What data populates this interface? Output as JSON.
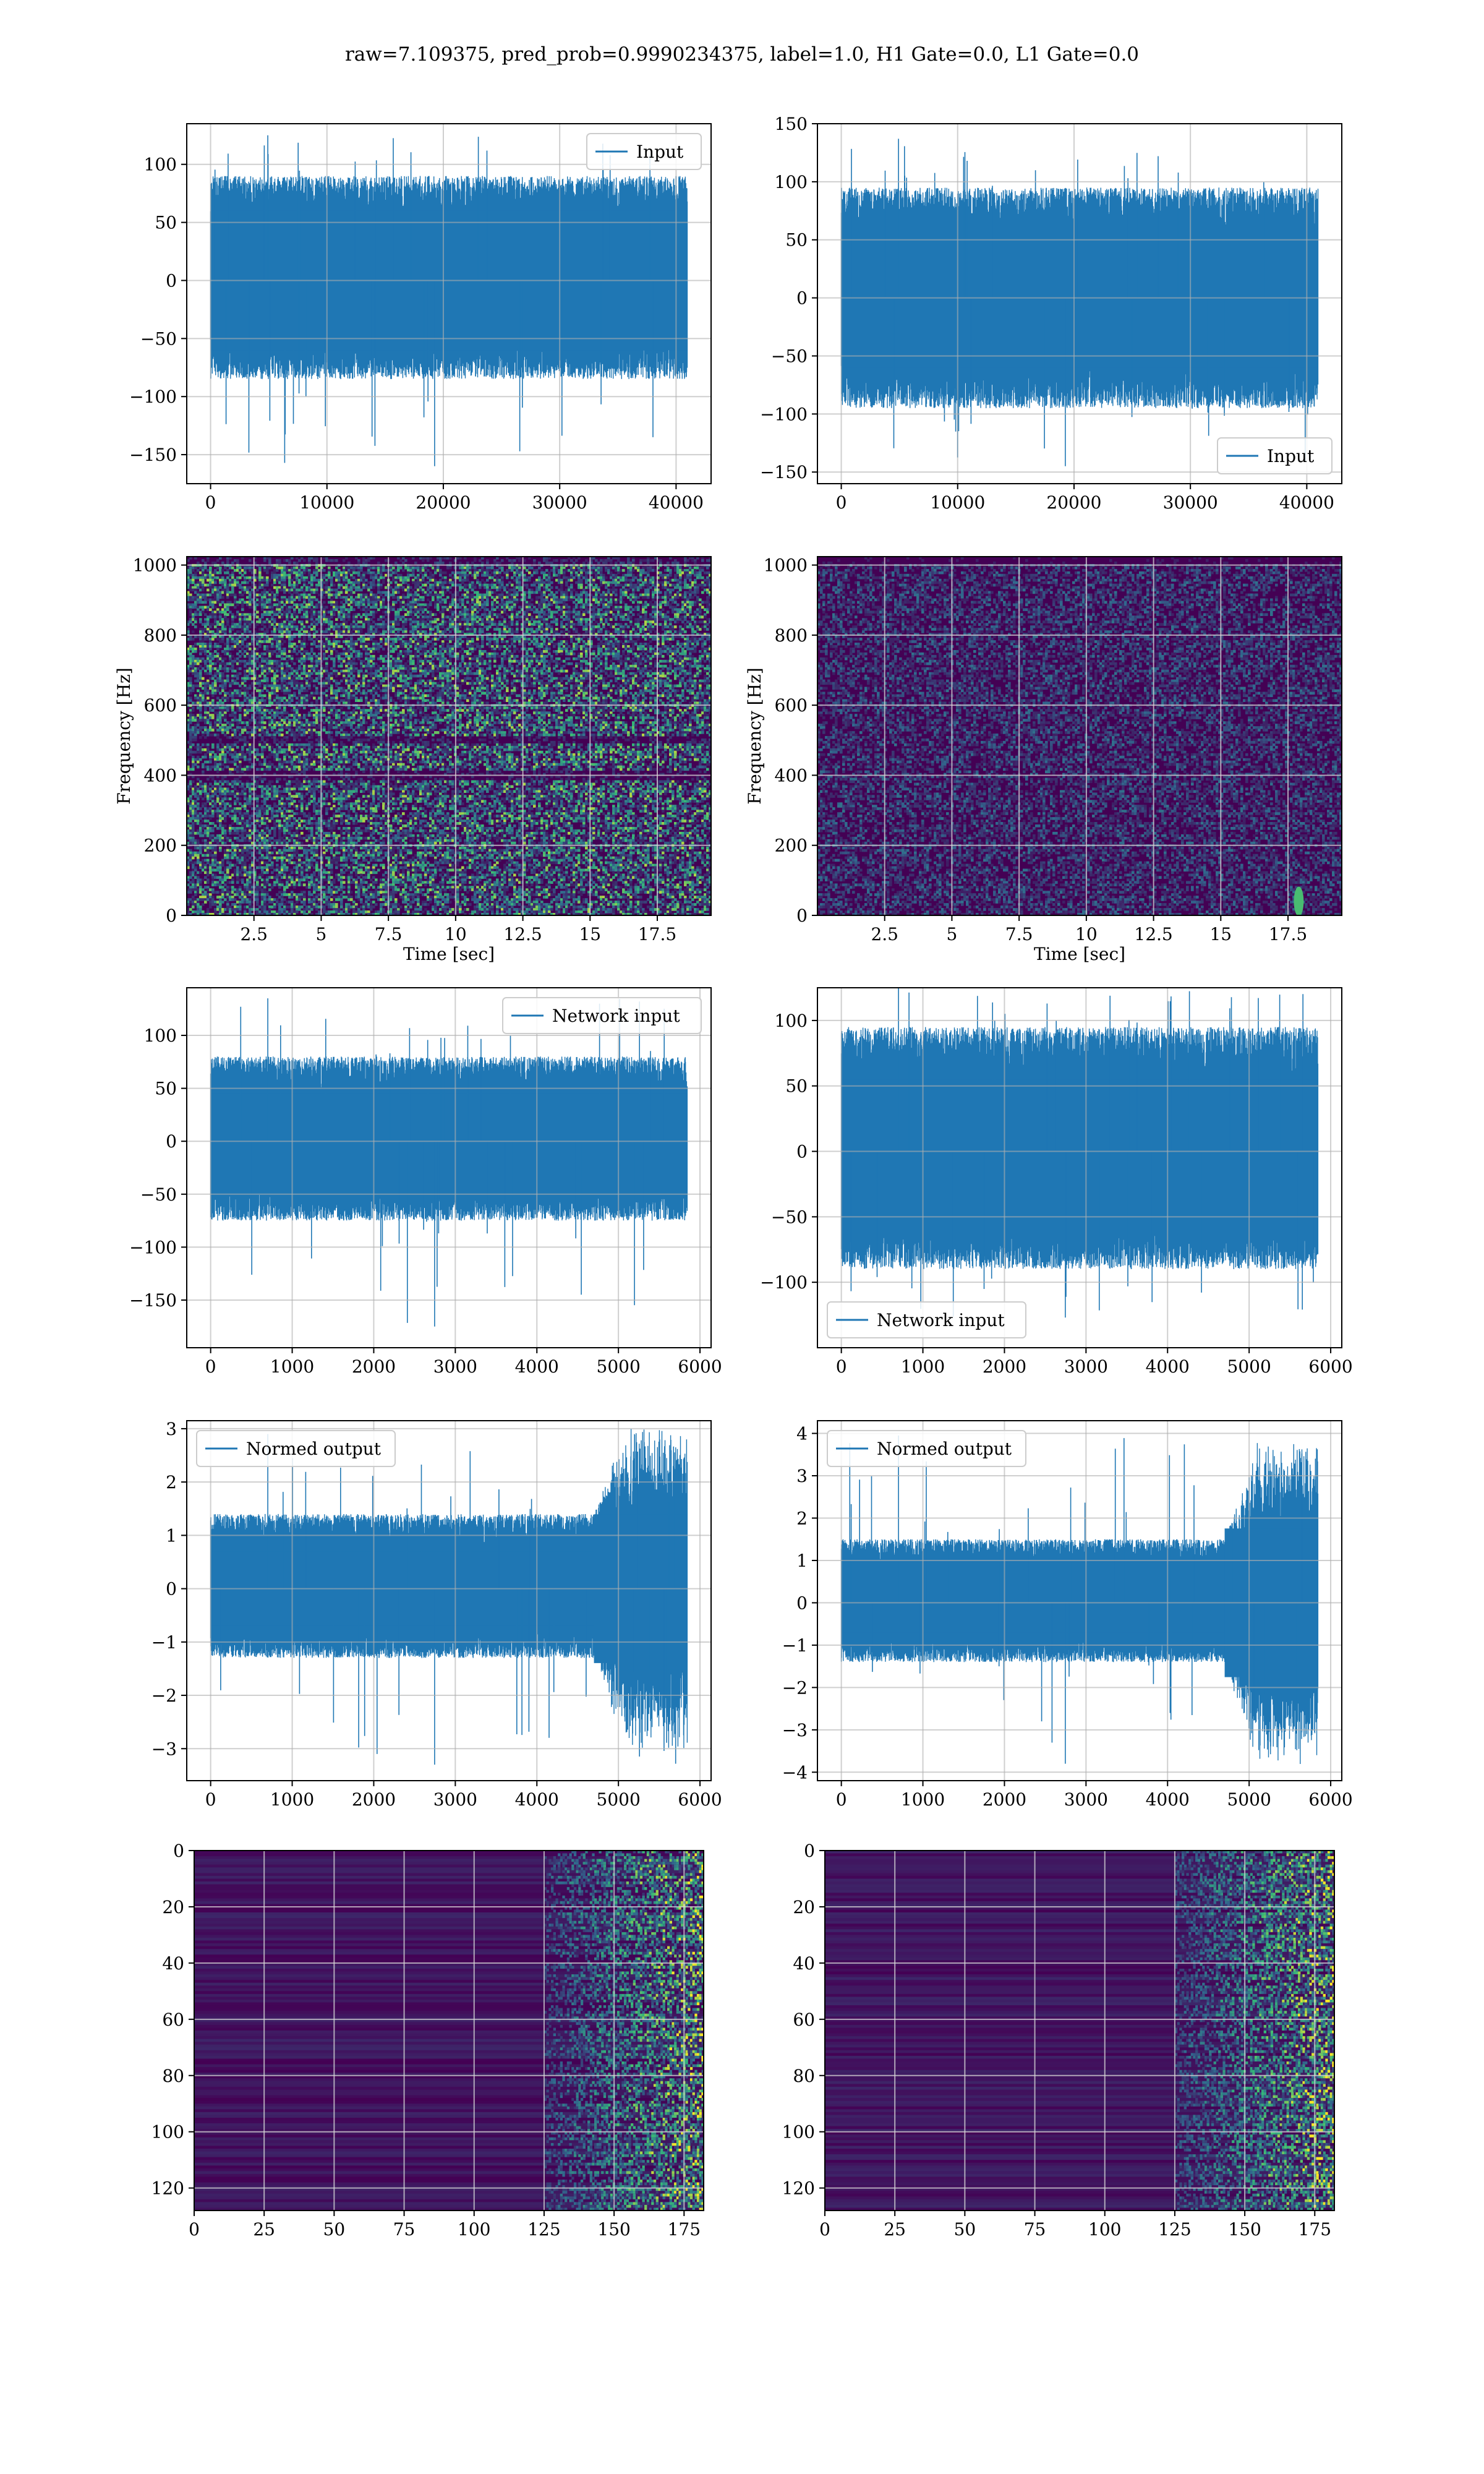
{
  "suptitle": "raw=7.109375, pred_prob=0.9990234375, label=1.0, H1 Gate=0.0, L1 Gate=0.0",
  "colors": {
    "line": "#1f77b4",
    "grid": "#b0b0b0",
    "viridis_low": "#440154",
    "viridis_mid": "#31688e",
    "viridis_high": "#35b779",
    "viridis_top": "#fde725"
  },
  "chart_data": [
    {
      "id": "h1-input",
      "type": "line",
      "title": "",
      "xlabel": "",
      "ylabel": "",
      "xlim": [
        -2048,
        43008
      ],
      "ylim": [
        -175,
        135
      ],
      "xticks": [
        0,
        10000,
        20000,
        30000,
        40000
      ],
      "yticks": [
        -150,
        -100,
        -50,
        0,
        50,
        100
      ],
      "grid": true,
      "legend": "upper right",
      "series": [
        {
          "name": "Input",
          "x_range": [
            0,
            40960
          ],
          "envelope": [
            -85,
            90
          ],
          "core": [
            -60,
            60
          ],
          "min": -160,
          "max": 125
        }
      ]
    },
    {
      "id": "l1-input",
      "type": "line",
      "title": "",
      "xlabel": "",
      "ylabel": "",
      "xlim": [
        -2048,
        43008
      ],
      "ylim": [
        -160,
        150
      ],
      "xticks": [
        0,
        10000,
        20000,
        30000,
        40000
      ],
      "yticks": [
        -150,
        -100,
        -50,
        0,
        50,
        100,
        150
      ],
      "grid": true,
      "legend": "lower right",
      "series": [
        {
          "name": "Input",
          "x_range": [
            0,
            40960
          ],
          "envelope": [
            -95,
            95
          ],
          "core": [
            -60,
            60
          ],
          "min": -145,
          "max": 137
        }
      ]
    },
    {
      "id": "h1-spectrogram",
      "type": "heatmap",
      "title": "",
      "xlabel": "Time [sec]",
      "ylabel": "Frequency [Hz]",
      "xlim": [
        0,
        19.5
      ],
      "ylim": [
        0,
        1024
      ],
      "xticks": [
        2.5,
        5.0,
        7.5,
        10.0,
        12.5,
        15.0,
        17.5
      ],
      "yticks": [
        0,
        200,
        400,
        600,
        800,
        1000
      ],
      "grid": true,
      "intensity": 0.55,
      "features": [
        {
          "kind": "dark-band",
          "freq": 500
        },
        {
          "kind": "dark-band",
          "freq": 400
        }
      ]
    },
    {
      "id": "l1-spectrogram",
      "type": "heatmap",
      "title": "",
      "xlabel": "Time [sec]",
      "ylabel": "Frequency [Hz]",
      "xlim": [
        0,
        19.5
      ],
      "ylim": [
        0,
        1024
      ],
      "xticks": [
        2.5,
        5.0,
        7.5,
        10.0,
        12.5,
        15.0,
        17.5
      ],
      "yticks": [
        0,
        200,
        400,
        600,
        800,
        1000
      ],
      "grid": true,
      "intensity": 0.22,
      "features": [
        {
          "kind": "bright-spot",
          "time": 17.9,
          "freq": 40
        }
      ]
    },
    {
      "id": "h1-network-input",
      "type": "line",
      "title": "",
      "xlabel": "",
      "ylabel": "",
      "xlim": [
        -293,
        6136
      ],
      "ylim": [
        -195,
        145
      ],
      "xticks": [
        0,
        1000,
        2000,
        3000,
        4000,
        5000,
        6000
      ],
      "yticks": [
        -150,
        -100,
        -50,
        0,
        50,
        100
      ],
      "grid": true,
      "legend": "upper right",
      "series": [
        {
          "name": "Network input",
          "x_range": [
            0,
            5843
          ],
          "envelope": [
            -75,
            80
          ],
          "core": [
            -45,
            45
          ],
          "min": -175,
          "max": 135
        }
      ]
    },
    {
      "id": "l1-network-input",
      "type": "line",
      "title": "",
      "xlabel": "",
      "ylabel": "",
      "xlim": [
        -293,
        6136
      ],
      "ylim": [
        -150,
        125
      ],
      "xticks": [
        0,
        1000,
        2000,
        3000,
        4000,
        5000,
        6000
      ],
      "yticks": [
        -100,
        -50,
        0,
        50,
        100
      ],
      "grid": true,
      "legend": "lower left",
      "series": [
        {
          "name": "Network input",
          "x_range": [
            0,
            5843
          ],
          "envelope": [
            -90,
            95
          ],
          "core": [
            -55,
            55
          ],
          "min": -127,
          "max": 125
        }
      ]
    },
    {
      "id": "h1-normed-output",
      "type": "line",
      "title": "",
      "xlabel": "",
      "ylabel": "",
      "xlim": [
        -293,
        6136
      ],
      "ylim": [
        -3.6,
        3.15
      ],
      "xticks": [
        0,
        1000,
        2000,
        3000,
        4000,
        5000,
        6000
      ],
      "yticks": [
        -3,
        -2,
        -1,
        0,
        1,
        2,
        3
      ],
      "grid": true,
      "legend": "upper left",
      "series": [
        {
          "name": "Normed output",
          "x_range": [
            0,
            5843
          ],
          "envelope": [
            -1.3,
            1.4
          ],
          "core": [
            -0.7,
            0.7
          ],
          "burst_start": 4700,
          "burst_amp": 3.1,
          "min": -3.3,
          "max": 2.9
        }
      ]
    },
    {
      "id": "l1-normed-output",
      "type": "line",
      "title": "",
      "xlabel": "",
      "ylabel": "",
      "xlim": [
        -293,
        6136
      ],
      "ylim": [
        -4.2,
        4.3
      ],
      "xticks": [
        0,
        1000,
        2000,
        3000,
        4000,
        5000,
        6000
      ],
      "yticks": [
        -4,
        -3,
        -2,
        -1,
        0,
        1,
        2,
        3,
        4
      ],
      "grid": true,
      "legend": "upper left",
      "series": [
        {
          "name": "Normed output",
          "x_range": [
            0,
            5843
          ],
          "envelope": [
            -1.4,
            1.5
          ],
          "core": [
            -0.7,
            0.7
          ],
          "burst_start": 4700,
          "burst_amp": 3.9,
          "min": -3.8,
          "max": 3.95
        }
      ]
    },
    {
      "id": "h1-feature-map",
      "type": "heatmap",
      "title": "",
      "xlabel": "",
      "ylabel": "",
      "xlim": [
        0,
        182
      ],
      "ylim": [
        128,
        0
      ],
      "xticks": [
        0,
        25,
        50,
        75,
        100,
        125,
        150,
        175
      ],
      "yticks": [
        0,
        20,
        40,
        60,
        80,
        100,
        120
      ],
      "grid": true,
      "active_from": 125
    },
    {
      "id": "l1-feature-map",
      "type": "heatmap",
      "title": "",
      "xlabel": "",
      "ylabel": "",
      "xlim": [
        0,
        182
      ],
      "ylim": [
        128,
        0
      ],
      "xticks": [
        0,
        25,
        50,
        75,
        100,
        125,
        150,
        175
      ],
      "yticks": [
        0,
        20,
        40,
        60,
        80,
        100,
        120
      ],
      "grid": true,
      "active_from": 125
    }
  ]
}
